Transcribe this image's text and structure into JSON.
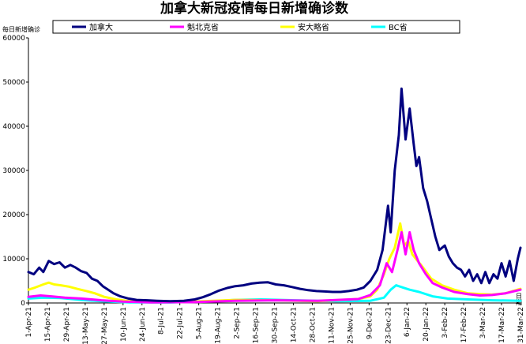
{
  "chart_data": {
    "type": "line",
    "title": "加拿大新冠疫情每日新增确诊数",
    "ylabel": "每日新增确诊",
    "xlabel_unit": "日期",
    "ylim": [
      0,
      60000
    ],
    "yticks": [
      0,
      10000,
      20000,
      30000,
      40000,
      50000,
      60000
    ],
    "xlim": [
      "2021-04-01",
      "2022-03-31"
    ],
    "xticks": [
      "1-Apr-21",
      "15-Apr-21",
      "29-Apr-21",
      "13-May-21",
      "27-May-21",
      "10-Jun-21",
      "24-Jun-21",
      "8-Jul-21",
      "22-Jul-21",
      "5-Aug-21",
      "19-Aug-21",
      "2-Sep-21",
      "16-Sep-21",
      "30-Sep-21",
      "14-Oct-21",
      "28-Oct-21",
      "11-Nov-21",
      "25-Nov-21",
      "9-Dec-21",
      "23-Dec-21",
      "6-Jan-22",
      "20-Jan-22",
      "3-Feb-22",
      "17-Feb-22",
      "3-Mar-22",
      "17-Mar-22",
      "31-Mar-22"
    ],
    "legend_position": "top",
    "grid": false,
    "series": [
      {
        "name": "加拿大",
        "color": "#000080",
        "points": [
          [
            "2021-04-01",
            7000
          ],
          [
            "2021-04-05",
            6500
          ],
          [
            "2021-04-09",
            8000
          ],
          [
            "2021-04-12",
            7000
          ],
          [
            "2021-04-16",
            9500
          ],
          [
            "2021-04-20",
            8800
          ],
          [
            "2021-04-24",
            9200
          ],
          [
            "2021-04-28",
            8000
          ],
          [
            "2021-05-02",
            8600
          ],
          [
            "2021-05-06",
            8000
          ],
          [
            "2021-05-10",
            7200
          ],
          [
            "2021-05-14",
            6800
          ],
          [
            "2021-05-18",
            5500
          ],
          [
            "2021-05-22",
            5000
          ],
          [
            "2021-05-26",
            3800
          ],
          [
            "2021-05-30",
            3000
          ],
          [
            "2021-06-03",
            2200
          ],
          [
            "2021-06-08",
            1500
          ],
          [
            "2021-06-14",
            1000
          ],
          [
            "2021-06-20",
            700
          ],
          [
            "2021-06-28",
            600
          ],
          [
            "2021-07-05",
            500
          ],
          [
            "2021-07-15",
            400
          ],
          [
            "2021-07-25",
            500
          ],
          [
            "2021-08-02",
            800
          ],
          [
            "2021-08-08",
            1300
          ],
          [
            "2021-08-14",
            2000
          ],
          [
            "2021-08-20",
            2800
          ],
          [
            "2021-08-26",
            3400
          ],
          [
            "2021-09-01",
            3800
          ],
          [
            "2021-09-07",
            4000
          ],
          [
            "2021-09-13",
            4400
          ],
          [
            "2021-09-19",
            4600
          ],
          [
            "2021-09-25",
            4700
          ],
          [
            "2021-10-01",
            4200
          ],
          [
            "2021-10-07",
            4000
          ],
          [
            "2021-10-13",
            3600
          ],
          [
            "2021-10-19",
            3200
          ],
          [
            "2021-10-25",
            2900
          ],
          [
            "2021-10-31",
            2700
          ],
          [
            "2021-11-06",
            2600
          ],
          [
            "2021-11-12",
            2500
          ],
          [
            "2021-11-18",
            2500
          ],
          [
            "2021-11-24",
            2700
          ],
          [
            "2021-11-30",
            3000
          ],
          [
            "2021-12-05",
            3500
          ],
          [
            "2021-12-10",
            5000
          ],
          [
            "2021-12-15",
            7500
          ],
          [
            "2021-12-19",
            12000
          ],
          [
            "2021-12-23",
            22000
          ],
          [
            "2021-12-25",
            16000
          ],
          [
            "2021-12-28",
            30000
          ],
          [
            "2021-12-31",
            38000
          ],
          [
            "2022-01-02",
            48500
          ],
          [
            "2022-01-05",
            37000
          ],
          [
            "2022-01-08",
            44000
          ],
          [
            "2022-01-11",
            36000
          ],
          [
            "2022-01-13",
            31000
          ],
          [
            "2022-01-15",
            33000
          ],
          [
            "2022-01-18",
            26000
          ],
          [
            "2022-01-21",
            23000
          ],
          [
            "2022-01-24",
            19000
          ],
          [
            "2022-01-27",
            15000
          ],
          [
            "2022-01-30",
            12000
          ],
          [
            "2022-02-03",
            13000
          ],
          [
            "2022-02-06",
            10500
          ],
          [
            "2022-02-09",
            9000
          ],
          [
            "2022-02-12",
            8000
          ],
          [
            "2022-02-15",
            7500
          ],
          [
            "2022-02-18",
            6000
          ],
          [
            "2022-02-21",
            7500
          ],
          [
            "2022-02-24",
            5000
          ],
          [
            "2022-02-27",
            6500
          ],
          [
            "2022-03-02",
            4500
          ],
          [
            "2022-03-05",
            7000
          ],
          [
            "2022-03-08",
            4500
          ],
          [
            "2022-03-11",
            6500
          ],
          [
            "2022-03-14",
            5500
          ],
          [
            "2022-03-17",
            9000
          ],
          [
            "2022-03-20",
            6000
          ],
          [
            "2022-03-23",
            9500
          ],
          [
            "2022-03-26",
            5000
          ],
          [
            "2022-03-29",
            10000
          ],
          [
            "2022-03-31",
            12500
          ]
        ]
      },
      {
        "name": "魁北克省",
        "color": "#ff00ff",
        "points": [
          [
            "2021-04-01",
            1400
          ],
          [
            "2021-04-10",
            1700
          ],
          [
            "2021-04-18",
            1500
          ],
          [
            "2021-04-28",
            1200
          ],
          [
            "2021-05-10",
            1000
          ],
          [
            "2021-05-25",
            600
          ],
          [
            "2021-06-10",
            300
          ],
          [
            "2021-07-01",
            150
          ],
          [
            "2021-08-01",
            200
          ],
          [
            "2021-09-01",
            500
          ],
          [
            "2021-10-01",
            600
          ],
          [
            "2021-11-01",
            500
          ],
          [
            "2021-12-01",
            900
          ],
          [
            "2021-12-10",
            1800
          ],
          [
            "2021-12-17",
            4000
          ],
          [
            "2021-12-22",
            9000
          ],
          [
            "2021-12-26",
            7000
          ],
          [
            "2021-12-30",
            12000
          ],
          [
            "2022-01-02",
            16000
          ],
          [
            "2022-01-05",
            11000
          ],
          [
            "2022-01-08",
            16000
          ],
          [
            "2022-01-11",
            12000
          ],
          [
            "2022-01-15",
            9000
          ],
          [
            "2022-01-20",
            6500
          ],
          [
            "2022-01-25",
            4500
          ],
          [
            "2022-02-01",
            3500
          ],
          [
            "2022-02-10",
            2500
          ],
          [
            "2022-02-20",
            2000
          ],
          [
            "2022-03-01",
            1700
          ],
          [
            "2022-03-10",
            1800
          ],
          [
            "2022-03-20",
            2200
          ],
          [
            "2022-03-31",
            3000
          ]
        ]
      },
      {
        "name": "安大略省",
        "color": "#ffff00",
        "points": [
          [
            "2021-04-01",
            3000
          ],
          [
            "2021-04-06",
            3500
          ],
          [
            "2021-04-12",
            4200
          ],
          [
            "2021-04-16",
            4600
          ],
          [
            "2021-04-20",
            4200
          ],
          [
            "2021-04-25",
            4000
          ],
          [
            "2021-05-01",
            3700
          ],
          [
            "2021-05-07",
            3200
          ],
          [
            "2021-05-14",
            2700
          ],
          [
            "2021-05-20",
            2200
          ],
          [
            "2021-05-27",
            1400
          ],
          [
            "2021-06-05",
            800
          ],
          [
            "2021-06-15",
            400
          ],
          [
            "2021-07-01",
            200
          ],
          [
            "2021-08-01",
            300
          ],
          [
            "2021-09-01",
            700
          ],
          [
            "2021-10-01",
            600
          ],
          [
            "2021-11-01",
            400
          ],
          [
            "2021-12-01",
            900
          ],
          [
            "2021-12-10",
            1500
          ],
          [
            "2021-12-15",
            3000
          ],
          [
            "2021-12-20",
            6500
          ],
          [
            "2021-12-24",
            10000
          ],
          [
            "2021-12-28",
            12500
          ],
          [
            "2022-01-01",
            18000
          ],
          [
            "2022-01-04",
            13000
          ],
          [
            "2022-01-07",
            14000
          ],
          [
            "2022-01-10",
            11000
          ],
          [
            "2022-01-14",
            9500
          ],
          [
            "2022-01-18",
            8000
          ],
          [
            "2022-01-24",
            5500
          ],
          [
            "2022-02-01",
            4000
          ],
          [
            "2022-02-10",
            3000
          ],
          [
            "2022-02-20",
            2200
          ],
          [
            "2022-03-01",
            2000
          ],
          [
            "2022-03-10",
            1900
          ],
          [
            "2022-03-20",
            2200
          ],
          [
            "2022-03-31",
            3200
          ]
        ]
      },
      {
        "name": "BC省",
        "color": "#00ffff",
        "points": [
          [
            "2021-04-01",
            1000
          ],
          [
            "2021-04-12",
            1200
          ],
          [
            "2021-04-25",
            1100
          ],
          [
            "2021-05-10",
            700
          ],
          [
            "2021-05-25",
            400
          ],
          [
            "2021-06-15",
            150
          ],
          [
            "2021-07-15",
            100
          ],
          [
            "2021-08-15",
            400
          ],
          [
            "2021-09-01",
            700
          ],
          [
            "2021-09-20",
            800
          ],
          [
            "2021-10-15",
            600
          ],
          [
            "2021-11-15",
            400
          ],
          [
            "2021-12-10",
            500
          ],
          [
            "2021-12-20",
            1200
          ],
          [
            "2021-12-25",
            3000
          ],
          [
            "2021-12-29",
            4000
          ],
          [
            "2022-01-03",
            3500
          ],
          [
            "2022-01-08",
            3000
          ],
          [
            "2022-01-15",
            2500
          ],
          [
            "2022-01-25",
            1500
          ],
          [
            "2022-02-05",
            1000
          ],
          [
            "2022-02-20",
            800
          ],
          [
            "2022-03-10",
            600
          ],
          [
            "2022-03-31",
            500
          ]
        ]
      }
    ]
  }
}
